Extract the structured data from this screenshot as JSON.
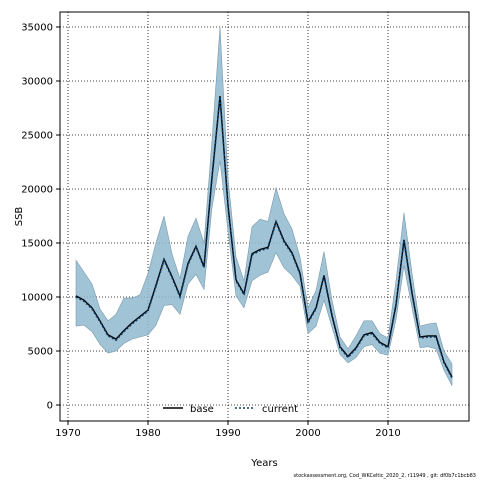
{
  "chart_data": {
    "type": "area",
    "xlabel": "Years",
    "ylabel": "SSB",
    "xlim": [
      1970,
      2018
    ],
    "ylim": [
      0,
      35000
    ],
    "xticks": [
      1970,
      1980,
      1990,
      2000,
      2010
    ],
    "yticks": [
      0,
      5000,
      10000,
      15000,
      20000,
      25000,
      30000,
      35000
    ],
    "grid": true,
    "legend": "bottom-center",
    "colors": {
      "band": "#8fb8cf",
      "band_edge": "#7a9aae",
      "base": "#000000",
      "current": "#0b3a66"
    },
    "x": [
      1971,
      1972,
      1973,
      1974,
      1975,
      1976,
      1977,
      1978,
      1979,
      1980,
      1981,
      1982,
      1983,
      1984,
      1985,
      1986,
      1987,
      1988,
      1989,
      1990,
      1991,
      1992,
      1993,
      1994,
      1995,
      1996,
      1997,
      1998,
      1999,
      2000,
      2001,
      2002,
      2003,
      2004,
      2005,
      2006,
      2007,
      2008,
      2009,
      2010,
      2011,
      2012,
      2013,
      2014,
      2015,
      2016,
      2017,
      2018
    ],
    "band_upper": [
      13400,
      12300,
      11200,
      8900,
      7800,
      8400,
      9900,
      9900,
      10200,
      12200,
      15000,
      17500,
      14000,
      11700,
      15600,
      17300,
      15000,
      24500,
      35000,
      21000,
      13700,
      11500,
      16500,
      17200,
      17000,
      20100,
      17700,
      16300,
      13700,
      9000,
      10600,
      14200,
      9700,
      6300,
      5200,
      6400,
      7800,
      7800,
      6600,
      6200,
      11500,
      17800,
      12200,
      7300,
      7500,
      7600,
      5000,
      3800
    ],
    "band_lower": [
      7300,
      7400,
      6800,
      5600,
      4800,
      5000,
      5700,
      6100,
      6300,
      6500,
      7400,
      9200,
      9300,
      8400,
      11200,
      12100,
      10700,
      18300,
      22600,
      16100,
      10100,
      9000,
      11500,
      12000,
      12300,
      14100,
      12700,
      12000,
      11000,
      6600,
      7300,
      9700,
      7200,
      4700,
      3900,
      4400,
      5400,
      5600,
      4800,
      4600,
      7900,
      12900,
      9000,
      5300,
      5400,
      5200,
      3200,
      1800
    ],
    "series": [
      {
        "name": "base",
        "values": [
          10100,
          9700,
          9000,
          7800,
          6500,
          6100,
          6900,
          7600,
          8200,
          8800,
          11100,
          13500,
          11900,
          10100,
          13100,
          14700,
          12800,
          21100,
          28600,
          18500,
          11600,
          10300,
          14000,
          14400,
          14600,
          17000,
          15200,
          14100,
          12200,
          7700,
          9000,
          12000,
          8300,
          5400,
          4500,
          5300,
          6500,
          6700,
          5800,
          5400,
          9300,
          15300,
          10400,
          6300,
          6400,
          6400,
          4000,
          2600
        ]
      },
      {
        "name": "current",
        "values": [
          10000,
          9600,
          8900,
          7700,
          6400,
          6000,
          6800,
          7500,
          8100,
          8700,
          11000,
          13400,
          11800,
          10000,
          13000,
          14600,
          12700,
          21000,
          28500,
          18400,
          11500,
          10200,
          13900,
          14300,
          14500,
          16900,
          15100,
          14000,
          12100,
          7600,
          8900,
          11900,
          8200,
          5300,
          4400,
          5200,
          6400,
          6600,
          5700,
          5300,
          9200,
          15200,
          10300,
          6200,
          6300,
          6300,
          3900,
          2500
        ]
      }
    ]
  },
  "caption": "stockassessment.org, Cod_WKCeltic_2020_2, r11949 , git: df0b7c1bcb83"
}
